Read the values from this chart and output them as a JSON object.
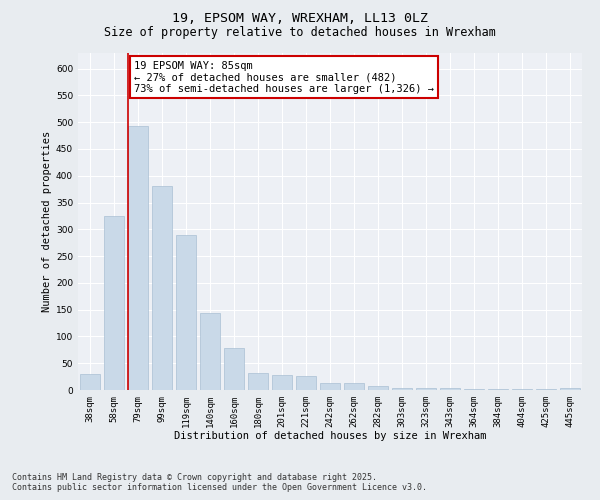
{
  "title_line1": "19, EPSOM WAY, WREXHAM, LL13 0LZ",
  "title_line2": "Size of property relative to detached houses in Wrexham",
  "xlabel": "Distribution of detached houses by size in Wrexham",
  "ylabel": "Number of detached properties",
  "categories": [
    "38sqm",
    "58sqm",
    "79sqm",
    "99sqm",
    "119sqm",
    "140sqm",
    "160sqm",
    "180sqm",
    "201sqm",
    "221sqm",
    "242sqm",
    "262sqm",
    "282sqm",
    "303sqm",
    "323sqm",
    "343sqm",
    "364sqm",
    "384sqm",
    "404sqm",
    "425sqm",
    "445sqm"
  ],
  "values": [
    30,
    325,
    492,
    380,
    290,
    143,
    78,
    32,
    28,
    27,
    14,
    13,
    7,
    4,
    3,
    4,
    2,
    2,
    2,
    1,
    4
  ],
  "bar_color": "#c9d9e8",
  "bar_edge_color": "#aac0d4",
  "vline_color": "#cc0000",
  "vline_x": 1.575,
  "annotation_text": "19 EPSOM WAY: 85sqm\n← 27% of detached houses are smaller (482)\n73% of semi-detached houses are larger (1,326) →",
  "annotation_box_facecolor": "#ffffff",
  "annotation_box_edgecolor": "#cc0000",
  "ylim": [
    0,
    630
  ],
  "yticks": [
    0,
    50,
    100,
    150,
    200,
    250,
    300,
    350,
    400,
    450,
    500,
    550,
    600
  ],
  "bg_color": "#e8ecf0",
  "plot_bg_color": "#edf0f5",
  "grid_color": "#ffffff",
  "footer": "Contains HM Land Registry data © Crown copyright and database right 2025.\nContains public sector information licensed under the Open Government Licence v3.0.",
  "title_fontsize": 9.5,
  "subtitle_fontsize": 8.5,
  "axis_label_fontsize": 7.5,
  "tick_fontsize": 6.5,
  "annotation_fontsize": 7.5,
  "footer_fontsize": 6.0
}
